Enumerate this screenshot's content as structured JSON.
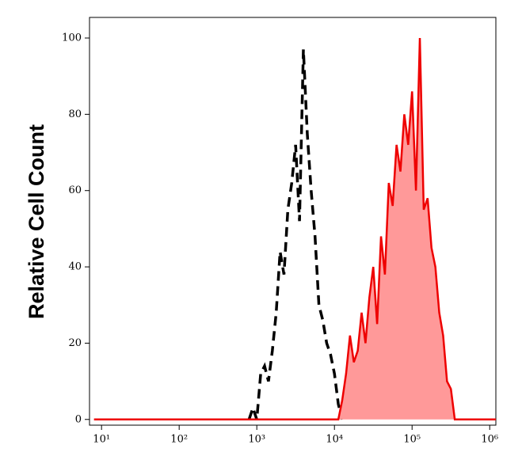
{
  "chart_data": {
    "type": "histogram-overlay",
    "y_label": "Relative Cell Count",
    "xscale": "log",
    "xlim": [
      7,
      1200000
    ],
    "ylim": [
      -1.5,
      105.4
    ],
    "xticks": [
      {
        "value": 10,
        "label": "10¹"
      },
      {
        "value": 100,
        "label": "10²"
      },
      {
        "value": 1000,
        "label": "10³"
      },
      {
        "value": 10000,
        "label": "10⁴"
      },
      {
        "value": 100000,
        "label": "10⁵"
      },
      {
        "value": 1000000,
        "label": "10⁶"
      }
    ],
    "yticks": [
      0,
      20,
      40,
      60,
      80,
      100
    ],
    "series": [
      {
        "style": "dashed",
        "color": "#000000",
        "x": [
          794,
          891,
          1000,
          1122,
          1259,
          1413,
          1585,
          1778,
          1995,
          2239,
          2512,
          2818,
          3162,
          3548,
          3981,
          4467,
          5012,
          5623,
          6310,
          7079,
          7943,
          8913,
          10000,
          11220,
          12589
        ],
        "values": [
          0,
          3,
          0,
          12,
          14,
          10,
          18,
          28,
          44,
          38,
          55,
          62,
          72,
          52,
          97,
          75,
          60,
          48,
          30,
          26,
          20,
          17,
          12,
          4,
          0
        ]
      },
      {
        "style": "filled",
        "color": "#ee0000",
        "fill": "#ff9999",
        "x": [
          8,
          11220,
          12589,
          14125,
          15849,
          17783,
          19953,
          22387,
          25119,
          28184,
          31623,
          35481,
          39811,
          44668,
          50119,
          56234,
          63096,
          70795,
          79433,
          89125,
          100000,
          112202,
          125893,
          141254,
          158489,
          177828,
          199526,
          223872,
          251189,
          281838,
          316228,
          354813,
          501187,
          1200000
        ],
        "values": [
          0,
          0,
          5,
          12,
          22,
          15,
          18,
          28,
          20,
          32,
          40,
          25,
          48,
          38,
          62,
          56,
          72,
          65,
          80,
          72,
          86,
          60,
          100,
          55,
          58,
          45,
          40,
          28,
          22,
          10,
          8,
          0,
          0,
          0
        ]
      }
    ]
  }
}
